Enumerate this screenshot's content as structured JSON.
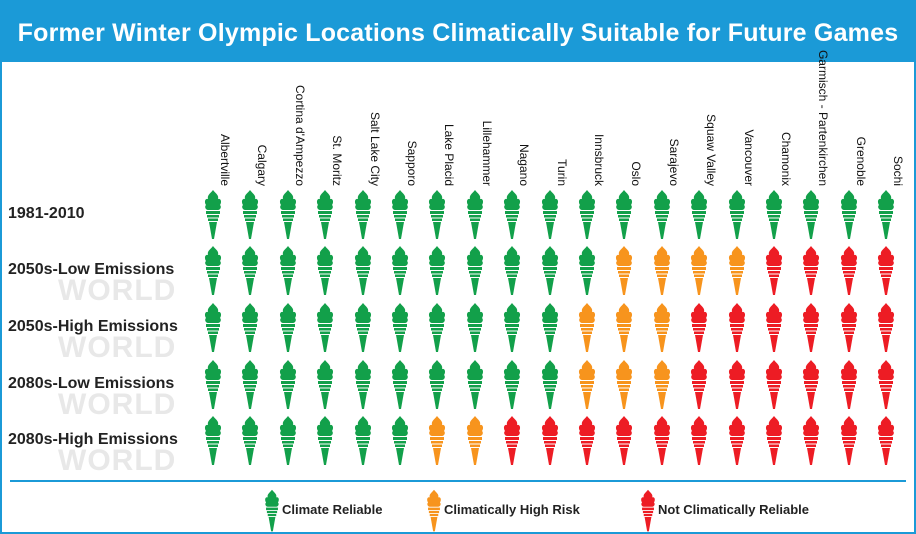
{
  "title": "Former Winter Olympic Locations Climatically Suitable for Future Games",
  "watermark": "WORLD",
  "colors": {
    "reliable": "#12a04a",
    "high_risk": "#f7941d",
    "not_reliable": "#ed1c24",
    "accent": "#1b9ad7"
  },
  "chart_data": {
    "type": "table",
    "title": "Former Winter Olympic Locations Climatically Suitable for Future Games",
    "columns": [
      "Albertville",
      "Calgary",
      "Cortina d'Ampezzo",
      "St. Moritz",
      "Salt Lake City",
      "Sapporo",
      "Lake Placid",
      "Lillehammer",
      "Nagano",
      "Turin",
      "Innsbruck",
      "Oslo",
      "Sarajevo",
      "Squaw Valley",
      "Vancouver",
      "Chamonix",
      "Garmisch - Partenkirchen",
      "Grenoble",
      "Sochi"
    ],
    "rows": [
      {
        "label": "1981-2010",
        "values": [
          "R",
          "R",
          "R",
          "R",
          "R",
          "R",
          "R",
          "R",
          "R",
          "R",
          "R",
          "R",
          "R",
          "R",
          "R",
          "R",
          "R",
          "R",
          "R"
        ]
      },
      {
        "label": "2050s-Low Emissions",
        "values": [
          "R",
          "R",
          "R",
          "R",
          "R",
          "R",
          "R",
          "R",
          "R",
          "R",
          "R",
          "H",
          "H",
          "H",
          "H",
          "N",
          "N",
          "N",
          "N"
        ]
      },
      {
        "label": "2050s-High Emissions",
        "values": [
          "R",
          "R",
          "R",
          "R",
          "R",
          "R",
          "R",
          "R",
          "R",
          "R",
          "H",
          "H",
          "H",
          "N",
          "N",
          "N",
          "N",
          "N",
          "N"
        ]
      },
      {
        "label": "2080s-Low Emissions",
        "values": [
          "R",
          "R",
          "R",
          "R",
          "R",
          "R",
          "R",
          "R",
          "R",
          "R",
          "H",
          "H",
          "H",
          "N",
          "N",
          "N",
          "N",
          "N",
          "N"
        ]
      },
      {
        "label": "2080s-High Emissions",
        "values": [
          "R",
          "R",
          "R",
          "R",
          "R",
          "R",
          "H",
          "H",
          "N",
          "N",
          "N",
          "N",
          "N",
          "N",
          "N",
          "N",
          "N",
          "N",
          "N"
        ]
      }
    ],
    "legend": [
      {
        "key": "R",
        "label": "Climate Reliable"
      },
      {
        "key": "H",
        "label": "Climatically High Risk"
      },
      {
        "key": "N",
        "label": "Not Climatically Reliable"
      }
    ],
    "legend_position": "bottom"
  }
}
